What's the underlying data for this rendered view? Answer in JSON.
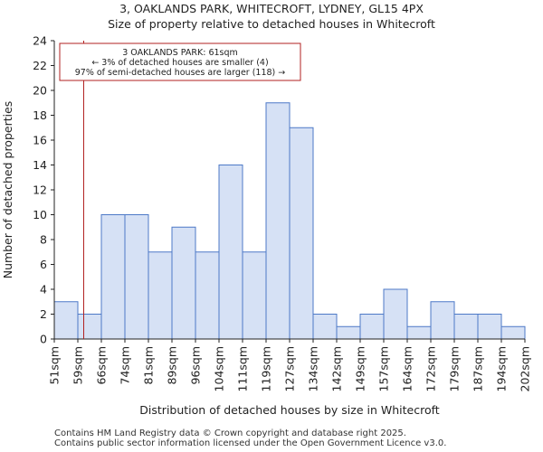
{
  "chart_data": {
    "type": "bar",
    "title": "3, OAKLANDS PARK, WHITECROFT, LYDNEY, GL15 4PX",
    "subtitle": "Size of property relative to detached houses in Whitecroft",
    "xlabel": "Distribution of detached houses by size in Whitecroft",
    "ylabel": "Number of detached properties",
    "x_ticks": [
      "51sqm",
      "59sqm",
      "66sqm",
      "74sqm",
      "81sqm",
      "89sqm",
      "96sqm",
      "104sqm",
      "111sqm",
      "119sqm",
      "127sqm",
      "134sqm",
      "142sqm",
      "149sqm",
      "157sqm",
      "164sqm",
      "172sqm",
      "179sqm",
      "187sqm",
      "194sqm",
      "202sqm"
    ],
    "values": [
      3,
      2,
      10,
      10,
      7,
      9,
      7,
      14,
      7,
      19,
      17,
      2,
      1,
      2,
      4,
      1,
      3,
      2,
      2,
      1
    ],
    "ylim": [
      0,
      24
    ],
    "yticks": [
      0,
      2,
      4,
      6,
      8,
      10,
      12,
      14,
      16,
      18,
      20,
      22,
      24
    ],
    "grid": false,
    "bar_fill": "#d6e1f5",
    "bar_stroke": "#4d79c7",
    "marker": {
      "value_sqm": 61,
      "color": "#b22222",
      "annotation": [
        "3 OAKLANDS PARK: 61sqm",
        "← 3% of detached houses are smaller (4)",
        "97% of semi-detached houses are larger (118) →"
      ]
    }
  },
  "footer": {
    "line1": "Contains HM Land Registry data © Crown copyright and database right 2025.",
    "line2": "Contains public sector information licensed under the Open Government Licence v3.0."
  }
}
